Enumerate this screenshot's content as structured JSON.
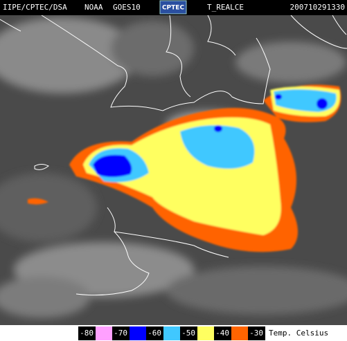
{
  "header": {
    "source": "IIPE/CPTEC/DSA",
    "agency": "NOAA",
    "satellite": "GOES10",
    "logo": "CPTEC",
    "product": "T_REALCE",
    "timestamp": "200710291330"
  },
  "legend": {
    "items": [
      {
        "label": "-80",
        "color": "#ffa0ff"
      },
      {
        "label": "-70",
        "color": "#0000ff"
      },
      {
        "label": "-60",
        "color": "#40c8ff"
      },
      {
        "label": "-50",
        "color": "#ffff60"
      },
      {
        "label": "-40",
        "color": "#ff6400"
      },
      {
        "label": "-30",
        "color": null
      }
    ],
    "unit": "Temp. Celsius"
  }
}
